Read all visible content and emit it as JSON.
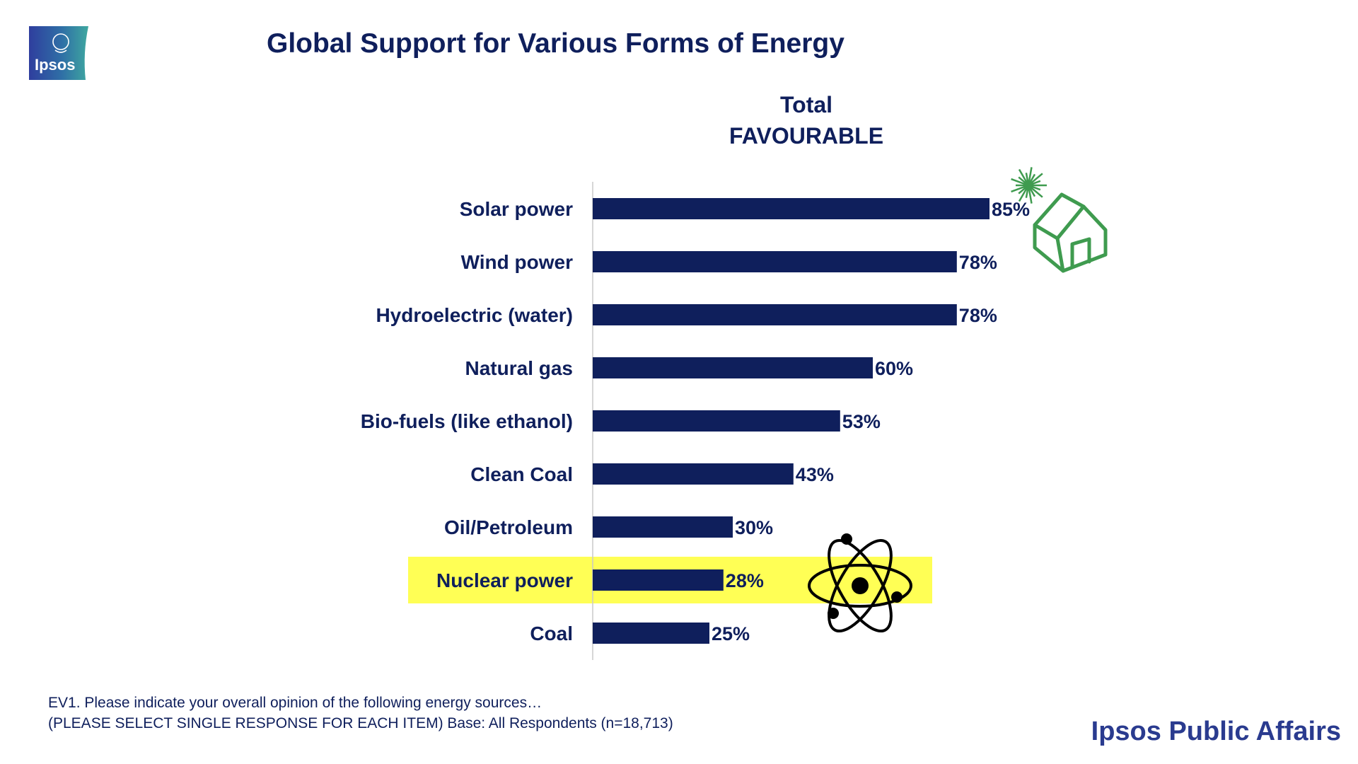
{
  "logo": {
    "text": "Ipsos",
    "icon": "ipsos-logo-icon"
  },
  "title": "Global Support for Various Forms of Energy",
  "column_header": {
    "line1": "Total",
    "line2": "FAVOURABLE"
  },
  "colors": {
    "bar": "#0f1f5c",
    "text": "#0f1f5c",
    "highlight": "#ffff55",
    "house_icon": "#3f9b4f",
    "sun_icon": "#3f9b4f",
    "atom_icon": "#000000",
    "brand": "#2a3b8f"
  },
  "chart_data": {
    "type": "bar",
    "orientation": "horizontal",
    "categories": [
      "Solar power",
      "Wind power",
      "Hydroelectric (water)",
      "Natural gas",
      "Bio-fuels (like ethanol)",
      "Clean Coal",
      "Oil/Petroleum",
      "Nuclear power",
      "Coal"
    ],
    "values": [
      85,
      78,
      78,
      60,
      53,
      43,
      30,
      28,
      25
    ],
    "value_labels": [
      "85%",
      "78%",
      "78%",
      "60%",
      "53%",
      "43%",
      "30%",
      "28%",
      "25%"
    ],
    "highlighted_category": "Nuclear power",
    "xlim": [
      0,
      100
    ],
    "grid": false,
    "legend": "none",
    "icons": [
      "solar-house-icon",
      "atom-icon"
    ]
  },
  "footnote": {
    "line1": "EV1. Please indicate your overall opinion of the following energy sources…",
    "line2": "(PLEASE SELECT SINGLE RESPONSE FOR EACH ITEM)  Base: All Respondents (n=18,713)"
  },
  "brand": "Ipsos Public Affairs"
}
